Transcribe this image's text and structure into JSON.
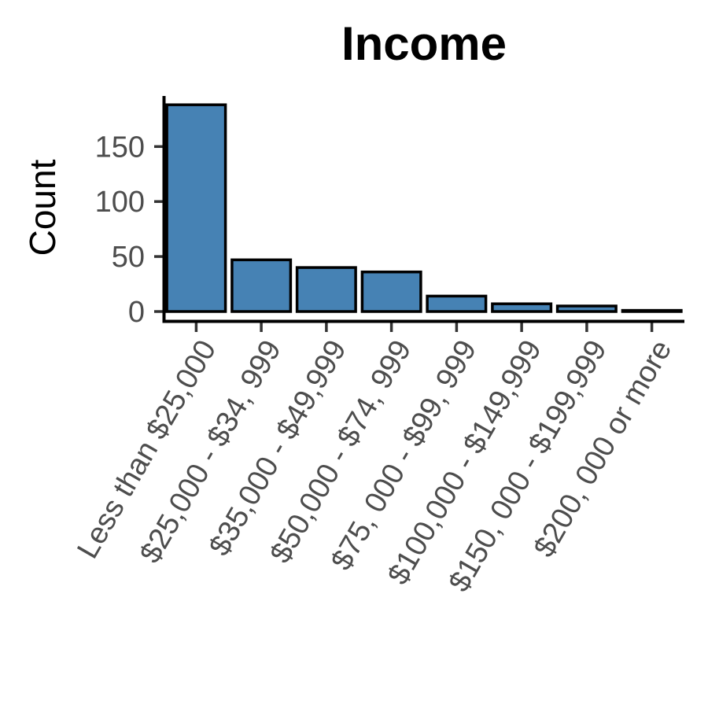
{
  "chart_data": {
    "type": "bar",
    "title": "Income",
    "xlabel": "",
    "ylabel": "Count",
    "categories": [
      "Less than $25,000",
      "$25,000 - $34, 999",
      "$35,000 - $49,999",
      "$50,000 - $74, 999",
      "$75, 000 - $99, 999",
      "$100,000 - $149,999",
      "$150, 000 - $199,999",
      "$200, 000 or more"
    ],
    "values": [
      188,
      47,
      40,
      36,
      14,
      7,
      5,
      1
    ],
    "ylim": [
      0,
      190
    ],
    "yticks": [
      0,
      50,
      100,
      150
    ],
    "ytick_labels": [
      "0",
      "50",
      "100",
      "150"
    ],
    "grid": false,
    "bar_color": "#4682b4",
    "bar_outline": "#000000"
  }
}
